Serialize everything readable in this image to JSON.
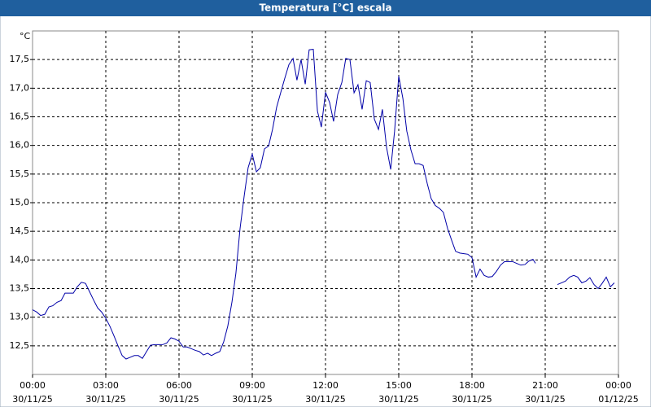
{
  "chart_data": {
    "type": "line",
    "title": "Temperatura [°C] escala",
    "y_unit": "°C",
    "x": [
      0,
      0.17,
      0.33,
      0.5,
      0.67,
      0.83,
      1,
      1.17,
      1.33,
      1.5,
      1.67,
      1.83,
      2,
      2.17,
      2.33,
      2.5,
      2.67,
      2.83,
      3,
      3.17,
      3.33,
      3.5,
      3.67,
      3.83,
      4,
      4.17,
      4.33,
      4.5,
      4.67,
      4.83,
      5,
      5.17,
      5.33,
      5.5,
      5.67,
      5.83,
      6,
      6.17,
      6.33,
      6.5,
      6.67,
      6.83,
      7,
      7.17,
      7.33,
      7.5,
      7.67,
      7.83,
      8,
      8.17,
      8.33,
      8.5,
      8.67,
      8.83,
      9,
      9.17,
      9.33,
      9.5,
      9.67,
      9.83,
      10,
      10.17,
      10.33,
      10.5,
      10.67,
      10.83,
      11,
      11.17,
      11.33,
      11.5,
      11.67,
      11.83,
      12,
      12.17,
      12.33,
      12.5,
      12.67,
      12.83,
      13,
      13.17,
      13.33,
      13.5,
      13.67,
      13.83,
      14,
      14.17,
      14.33,
      14.5,
      14.67,
      14.83,
      15,
      15.17,
      15.33,
      15.5,
      15.67,
      15.83,
      16,
      16.17,
      16.33,
      16.5,
      16.67,
      16.83,
      17,
      17.17,
      17.33,
      17.5,
      17.67,
      17.83,
      18,
      18.17,
      18.33,
      18.5,
      18.67,
      18.83,
      19,
      19.17,
      19.33,
      19.5,
      19.67,
      19.83,
      20,
      20.17,
      20.33,
      20.5,
      20.6,
      21,
      21.5,
      21.67,
      21.83,
      22,
      22.17,
      22.33,
      22.5,
      22.67,
      22.83,
      23,
      23.17,
      23.33,
      23.5,
      23.67,
      23.83
    ],
    "series": [
      {
        "name": "Temperatura",
        "color": "#0000a8",
        "values": [
          13.13,
          13.09,
          13.03,
          13.05,
          13.18,
          13.2,
          13.26,
          13.29,
          13.42,
          13.42,
          13.42,
          13.53,
          13.61,
          13.59,
          13.45,
          13.3,
          13.16,
          13.09,
          12.98,
          12.84,
          12.68,
          12.5,
          12.33,
          12.27,
          12.3,
          12.33,
          12.33,
          12.28,
          12.4,
          12.51,
          12.52,
          12.52,
          12.52,
          12.55,
          12.64,
          12.62,
          12.58,
          12.48,
          12.48,
          12.45,
          12.42,
          12.4,
          12.34,
          12.37,
          12.33,
          12.37,
          12.4,
          12.57,
          12.85,
          13.27,
          13.77,
          14.55,
          15.12,
          15.61,
          15.85,
          15.54,
          15.61,
          15.94,
          15.99,
          16.28,
          16.67,
          16.93,
          17.17,
          17.41,
          17.52,
          17.14,
          17.5,
          17.07,
          17.67,
          17.68,
          16.6,
          16.32,
          16.93,
          16.75,
          16.42,
          16.89,
          17.1,
          17.52,
          17.5,
          16.92,
          17.06,
          16.63,
          17.13,
          17.1,
          16.46,
          16.28,
          16.63,
          15.97,
          15.58,
          16.25,
          17.21,
          16.82,
          16.25,
          15.92,
          15.68,
          15.68,
          15.65,
          15.33,
          15.07,
          14.95,
          14.9,
          14.83,
          14.55,
          14.34,
          14.15,
          14.12,
          14.11,
          14.1,
          14.04,
          13.7,
          13.84,
          13.73,
          13.7,
          13.71,
          13.8,
          13.91,
          13.97,
          13.97,
          13.97,
          13.94,
          13.91,
          13.92,
          13.98,
          14.01,
          13.94,
          null,
          13.57,
          13.6,
          13.63,
          13.7,
          13.73,
          13.7,
          13.6,
          13.63,
          13.69,
          13.57,
          13.5,
          13.59,
          13.7,
          13.53,
          13.6
        ]
      }
    ],
    "xlim": [
      0,
      24
    ],
    "xticks": [
      {
        "value": 0,
        "label": "00:00"
      },
      {
        "value": 3,
        "label": "03:00"
      },
      {
        "value": 6,
        "label": "06:00"
      },
      {
        "value": 9,
        "label": "09:00"
      },
      {
        "value": 12,
        "label": "12:00"
      },
      {
        "value": 15,
        "label": "15:00"
      },
      {
        "value": 18,
        "label": "18:00"
      },
      {
        "value": 21,
        "label": "21:00"
      },
      {
        "value": 24,
        "label": "00:00"
      }
    ],
    "xtick_dates": [
      "30/11/25",
      "30/11/25",
      "30/11/25",
      "30/11/25",
      "30/11/25",
      "30/11/25",
      "30/11/25",
      "30/11/25",
      "01/12/25"
    ],
    "ylim": [
      12,
      18
    ],
    "yticks": [
      {
        "value": 12.5,
        "label": "12,5"
      },
      {
        "value": 13,
        "label": "13,0"
      },
      {
        "value": 13.5,
        "label": "13,5"
      },
      {
        "value": 14,
        "label": "14,0"
      },
      {
        "value": 14.5,
        "label": "14,5"
      },
      {
        "value": 15,
        "label": "15,0"
      },
      {
        "value": 15.5,
        "label": "15,5"
      },
      {
        "value": 16,
        "label": "16,0"
      },
      {
        "value": 16.5,
        "label": "16,5"
      },
      {
        "value": 17,
        "label": "17,0"
      },
      {
        "value": 17.5,
        "label": "17,5"
      }
    ],
    "grid": true
  }
}
